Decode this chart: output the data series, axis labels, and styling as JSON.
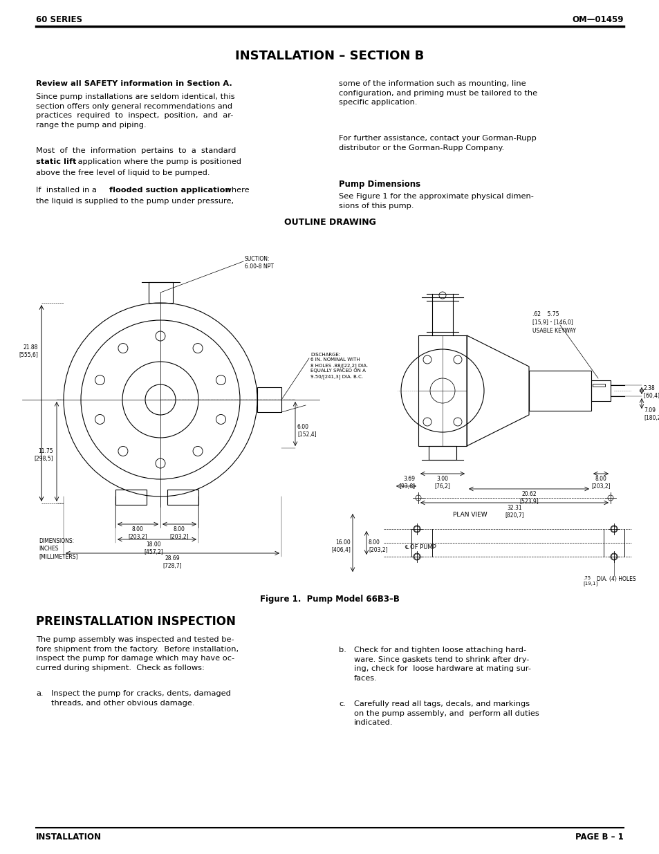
{
  "page_bg": "#ffffff",
  "header_left": "60 SERIES",
  "header_right": "OM—01459",
  "footer_left": "INSTALLATION",
  "footer_right": "PAGE B – 1",
  "title": "INSTALLATION – SECTION B",
  "outline_drawing_label": "OUTLINE DRAWING",
  "figure_caption": "Figure 1.  Pump Model 66B3–B",
  "preinstall_title": "PREINSTALLATION INSPECTION"
}
